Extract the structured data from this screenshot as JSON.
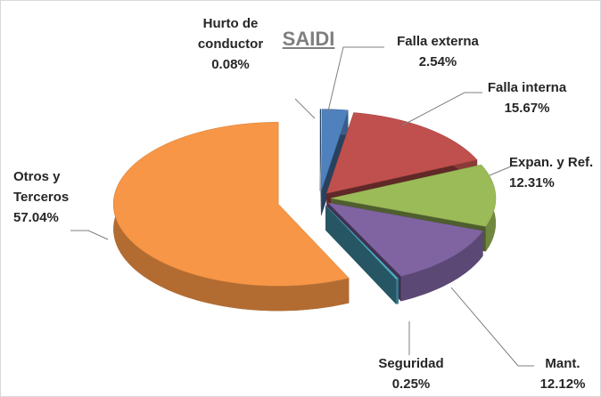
{
  "chart_data": {
    "type": "pie",
    "title": "SAIDI",
    "categories": [
      "Hurto de conductor",
      "Falla externa",
      "Falla interna",
      "Expan. y Ref.",
      "Mant.",
      "Seguridad",
      "Otros y Terceros"
    ],
    "values": [
      0.08,
      2.54,
      15.67,
      12.31,
      12.12,
      0.25,
      57.04
    ],
    "value_labels": [
      "0.08%",
      "2.54%",
      "15.67%",
      "12.31%",
      "12.12%",
      "0.25%",
      "57.04%"
    ],
    "colors": [
      "#2c4d75",
      "#4f81bd",
      "#c0504d",
      "#9bbb59",
      "#8064a2",
      "#4bacc6",
      "#f79646"
    ]
  }
}
